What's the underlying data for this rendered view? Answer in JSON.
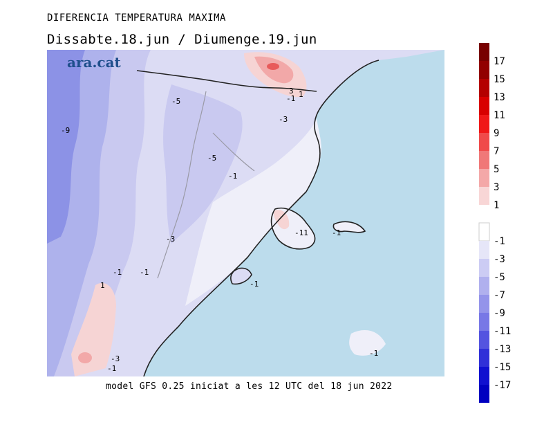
{
  "header": {
    "title": "DIFERENCIA TEMPERATURA MAXIMA",
    "subtitle": "Dissabte.18.jun / Diumenge.19.jun"
  },
  "brand": {
    "logo_text": "ara.cat"
  },
  "footer": {
    "caption": "model GFS 0.25 iniciat a les 12 UTC del 18 jun 2022"
  },
  "colors": {
    "sea": "#bcdcec",
    "neg1": "#efeff9",
    "neg3": "#dcdcf4",
    "neg5": "#c9c9f0",
    "neg7": "#aeb2ec",
    "neg9": "#8c92e6",
    "pos1": "#f6d4d4",
    "pos3": "#f2a8a8",
    "pos5": "#e85a5a"
  },
  "legend": {
    "positive": [
      {
        "label": "17",
        "color": "#780000"
      },
      {
        "label": "15",
        "color": "#920000"
      },
      {
        "label": "13",
        "color": "#b40000"
      },
      {
        "label": "11",
        "color": "#d80000"
      },
      {
        "label": "9",
        "color": "#f01818"
      },
      {
        "label": "7",
        "color": "#f04a4a"
      },
      {
        "label": "5",
        "color": "#f07878"
      },
      {
        "label": "3",
        "color": "#f4a8a8"
      },
      {
        "label": "1",
        "color": "#f8d6d6"
      }
    ],
    "negative": [
      {
        "label": "-1",
        "color": "#ffffff"
      },
      {
        "label": "-3",
        "color": "#e6e6f8"
      },
      {
        "label": "-5",
        "color": "#ccccf4"
      },
      {
        "label": "-7",
        "color": "#b0b0ee"
      },
      {
        "label": "-9",
        "color": "#9494ea"
      },
      {
        "label": "-11",
        "color": "#7878e6"
      },
      {
        "label": "-13",
        "color": "#5454e0"
      },
      {
        "label": "-15",
        "color": "#3030d8"
      },
      {
        "label": "-17",
        "color": "#1010d0"
      },
      {
        "label": "",
        "color": "#0000c0"
      }
    ]
  },
  "map": {
    "contour_labels": [
      {
        "text": "-9"
      },
      {
        "text": "-5"
      },
      {
        "text": "-5"
      },
      {
        "text": "-3"
      },
      {
        "text": "-1"
      },
      {
        "text": "3"
      },
      {
        "text": "-1"
      },
      {
        "text": "1"
      },
      {
        "text": "-1"
      },
      {
        "text": "-3"
      },
      {
        "text": "-1"
      },
      {
        "text": "-1"
      },
      {
        "text": "1"
      },
      {
        "text": "-1"
      },
      {
        "text": "-1"
      },
      {
        "text": "-3"
      },
      {
        "text": "-1"
      },
      {
        "text": "-11"
      }
    ]
  }
}
